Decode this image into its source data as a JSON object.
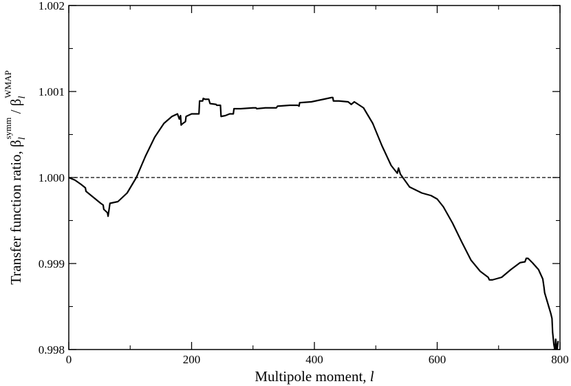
{
  "chart_data": {
    "type": "line",
    "xlabel": "Multipole moment, ",
    "xlabel_var": "l",
    "ylabel_prefix": "Transfer function ratio, β",
    "ylabel_sub1": "l",
    "ylabel_sup1": "symm",
    "ylabel_sep": " / β",
    "ylabel_sub2": "l",
    "ylabel_sup2": "WMAP",
    "xlim": [
      0,
      800
    ],
    "ylim": [
      0.998,
      1.002
    ],
    "xticks": [
      0,
      200,
      400,
      600,
      800
    ],
    "xtick_labels": [
      "0",
      "200",
      "400",
      "600",
      "800"
    ],
    "yticks": [
      0.998,
      0.999,
      1.0,
      1.001,
      1.002
    ],
    "ytick_labels": [
      "0.998",
      "0.999",
      "1.000",
      "1.001",
      "1.002"
    ],
    "reference_line": {
      "y": 1.0,
      "style": "dashed"
    },
    "series": [
      {
        "x": [
          0,
          10,
          20,
          27,
          28,
          40,
          52,
          56,
          57,
          63,
          64,
          66,
          67,
          80,
          95,
          110,
          125,
          140,
          155,
          168,
          177,
          180,
          182,
          183,
          186,
          190,
          191,
          200,
          210,
          212,
          213,
          218,
          219,
          222,
          228,
          230,
          240,
          241,
          247,
          248,
          255,
          262,
          264,
          268,
          269,
          280,
          300,
          305,
          306,
          320,
          338,
          340,
          341,
          360,
          373,
          375,
          376,
          395,
          415,
          428,
          430,
          431,
          440,
          455,
          460,
          465,
          480,
          495,
          510,
          525,
          535,
          537,
          540,
          555,
          575,
          590,
          600,
          610,
          625,
          640,
          655,
          670,
          683,
          685,
          690,
          705,
          720,
          735,
          743,
          745,
          748,
          755,
          765,
          772,
          774,
          775,
          785,
          787,
          788,
          790,
          792,
          793,
          795,
          797
        ],
        "y": [
          1.0,
          0.99997,
          0.99992,
          0.99988,
          0.99984,
          0.99977,
          0.9997,
          0.99968,
          0.99963,
          0.99959,
          0.99955,
          0.99965,
          0.9997,
          0.99972,
          0.99982,
          1.0,
          1.00025,
          1.00047,
          1.00063,
          1.00071,
          1.00074,
          1.00068,
          1.00072,
          1.00061,
          1.00063,
          1.00065,
          1.00071,
          1.00074,
          1.00074,
          1.00074,
          1.00089,
          1.00089,
          1.00092,
          1.00091,
          1.00091,
          1.00086,
          1.00085,
          1.00084,
          1.00084,
          1.00071,
          1.00072,
          1.00074,
          1.00074,
          1.00074,
          1.0008,
          1.0008,
          1.00081,
          1.00081,
          1.0008,
          1.00081,
          1.00081,
          1.00083,
          1.00083,
          1.00084,
          1.00084,
          1.00083,
          1.00087,
          1.00088,
          1.00091,
          1.00093,
          1.00093,
          1.00089,
          1.00089,
          1.00088,
          1.00085,
          1.00088,
          1.00081,
          1.00063,
          1.00037,
          1.00014,
          1.00005,
          1.00011,
          1.00004,
          0.99989,
          0.99982,
          0.99979,
          0.99975,
          0.99966,
          0.99947,
          0.99925,
          0.99904,
          0.99891,
          0.99884,
          0.99881,
          0.99881,
          0.99884,
          0.99893,
          0.99901,
          0.99902,
          0.99906,
          0.99906,
          0.99901,
          0.99893,
          0.99882,
          0.99872,
          0.99866,
          0.99842,
          0.99836,
          0.9982,
          0.99806,
          0.99798,
          0.99812,
          0.99798,
          0.9981
        ]
      }
    ]
  }
}
